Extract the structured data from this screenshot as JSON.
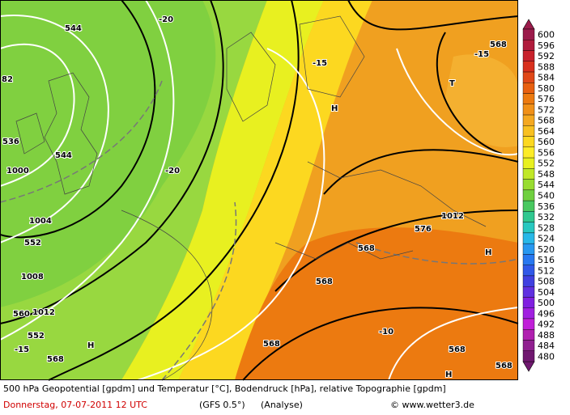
{
  "map_labels": [
    "544",
    "-20",
    "-15",
    "568",
    "-15",
    "T",
    "H",
    "82",
    "536",
    "544",
    "-20",
    "1000",
    "1004",
    "552",
    "576",
    "1012",
    "H",
    "1008",
    "568",
    "568",
    "560",
    "1012",
    "552",
    "-15",
    "568",
    "H",
    "-10",
    "568",
    "568",
    "568",
    "H"
  ],
  "legend": {
    "labels": [
      "600",
      "596",
      "592",
      "588",
      "584",
      "580",
      "576",
      "572",
      "568",
      "564",
      "560",
      "556",
      "552",
      "548",
      "544",
      "540",
      "536",
      "532",
      "528",
      "524",
      "520",
      "516",
      "512",
      "508",
      "504",
      "500",
      "496",
      "492",
      "488",
      "484",
      "480"
    ],
    "colors": [
      "#9b1b4b",
      "#b01c3c",
      "#c8222c",
      "#d8301e",
      "#e04818",
      "#e86010",
      "#ec7a10",
      "#f09018",
      "#f4a820",
      "#f8c020",
      "#fcd820",
      "#fcec28",
      "#e8f020",
      "#c0e828",
      "#98dc30",
      "#70d040",
      "#48c860",
      "#30c890",
      "#28c8c0",
      "#28b8e8",
      "#2898f0",
      "#2878f0",
      "#3058e8",
      "#4040e0",
      "#6030e0",
      "#8020e0",
      "#a020e0",
      "#c020d8",
      "#b020b0",
      "#902090",
      "#701870"
    ]
  },
  "footer": {
    "description": "500 hPa Geopotential [gpdm] und Temperatur [°C], Bodendruck [hPa], relative Topographie [gpdm]",
    "date": "Donnerstag, 07-07-2011   12 UTC",
    "model": "(GFS 0.5°)",
    "run": "(Analyse)",
    "credit": "© www.wetter3.de"
  }
}
